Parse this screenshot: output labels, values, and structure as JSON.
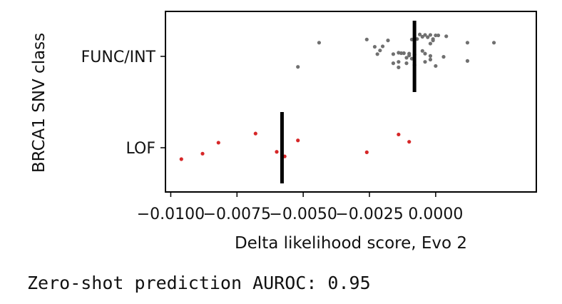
{
  "chart_data": {
    "type": "scatter",
    "title": "",
    "xlabel": "Delta likelihood score, Evo 2",
    "ylabel": "BRCA1 SNV class",
    "xlim": [
      -0.0102,
      0.0038
    ],
    "xticks": [
      -0.01,
      -0.0075,
      -0.005,
      -0.0025,
      0.0
    ],
    "xtick_labels": [
      "−0.0100",
      "−0.0075",
      "−0.0050",
      "−0.0025",
      "0.0000"
    ],
    "categories": [
      "FUNC/INT",
      "LOF"
    ],
    "grid": false,
    "series": [
      {
        "category": "FUNC/INT",
        "color": "#707070",
        "median": -0.0008,
        "points": [
          [
            -0.0006,
            0.48
          ],
          [
            -0.0002,
            0.47
          ],
          [
            0.0,
            0.46
          ],
          [
            -0.0004,
            0.47
          ],
          [
            0.0001,
            0.46
          ],
          [
            0.0004,
            0.44
          ],
          [
            -0.0005,
            0.43
          ],
          [
            -0.0003,
            0.42
          ],
          [
            -0.0007,
            0.38
          ],
          [
            -0.0001,
            0.38
          ],
          [
            -0.0009,
            0.37
          ],
          [
            -0.0001,
            0.35
          ],
          [
            -0.0018,
            0.35
          ],
          [
            -0.0026,
            0.37
          ],
          [
            0.0012,
            0.3
          ],
          [
            0.0022,
            0.3
          ],
          [
            -0.0044,
            0.3
          ],
          [
            -0.0002,
            0.28
          ],
          [
            -0.002,
            0.22
          ],
          [
            -0.0023,
            0.21
          ],
          [
            -0.0021,
            0.13
          ],
          [
            -0.0005,
            0.12
          ],
          [
            -0.0012,
            0.07
          ],
          [
            -0.0014,
            0.08
          ],
          [
            -0.0022,
            0.05
          ],
          [
            -0.0008,
            0.04
          ],
          [
            -0.0016,
            0.05
          ],
          [
            -0.0004,
            0.06
          ],
          [
            -0.0002,
            0.01
          ],
          [
            -0.0011,
            -0.03
          ],
          [
            0.0012,
            -0.1
          ],
          [
            -0.0013,
            0.07
          ],
          [
            -0.001,
            0.06
          ],
          [
            -0.001,
            0.02
          ],
          [
            0.0003,
            -0.01
          ],
          [
            -0.0016,
            -0.15
          ],
          [
            -0.0011,
            -0.15
          ],
          [
            -0.0004,
            -0.12
          ],
          [
            0.0,
            -0.21
          ],
          [
            -0.0014,
            -0.24
          ],
          [
            -0.0014,
            -0.12
          ],
          [
            -0.0009,
            -0.05
          ],
          [
            -0.0002,
            -0.07
          ],
          [
            -0.0052,
            -0.23
          ],
          [
            -0.0008,
            -0.19
          ]
        ]
      },
      {
        "category": "LOF",
        "color": "#d62728",
        "median": -0.0058,
        "points": [
          [
            -0.0068,
            0.31
          ],
          [
            -0.0014,
            0.29
          ],
          [
            -0.0052,
            0.16
          ],
          [
            -0.0082,
            0.11
          ],
          [
            -0.001,
            0.13
          ],
          [
            -0.006,
            -0.09
          ],
          [
            -0.0026,
            -0.1
          ],
          [
            -0.0088,
            -0.13
          ],
          [
            -0.0057,
            -0.19
          ],
          [
            -0.0096,
            -0.25
          ]
        ]
      }
    ]
  },
  "footer_text": "Zero-shot prediction AUROC: 0.95"
}
